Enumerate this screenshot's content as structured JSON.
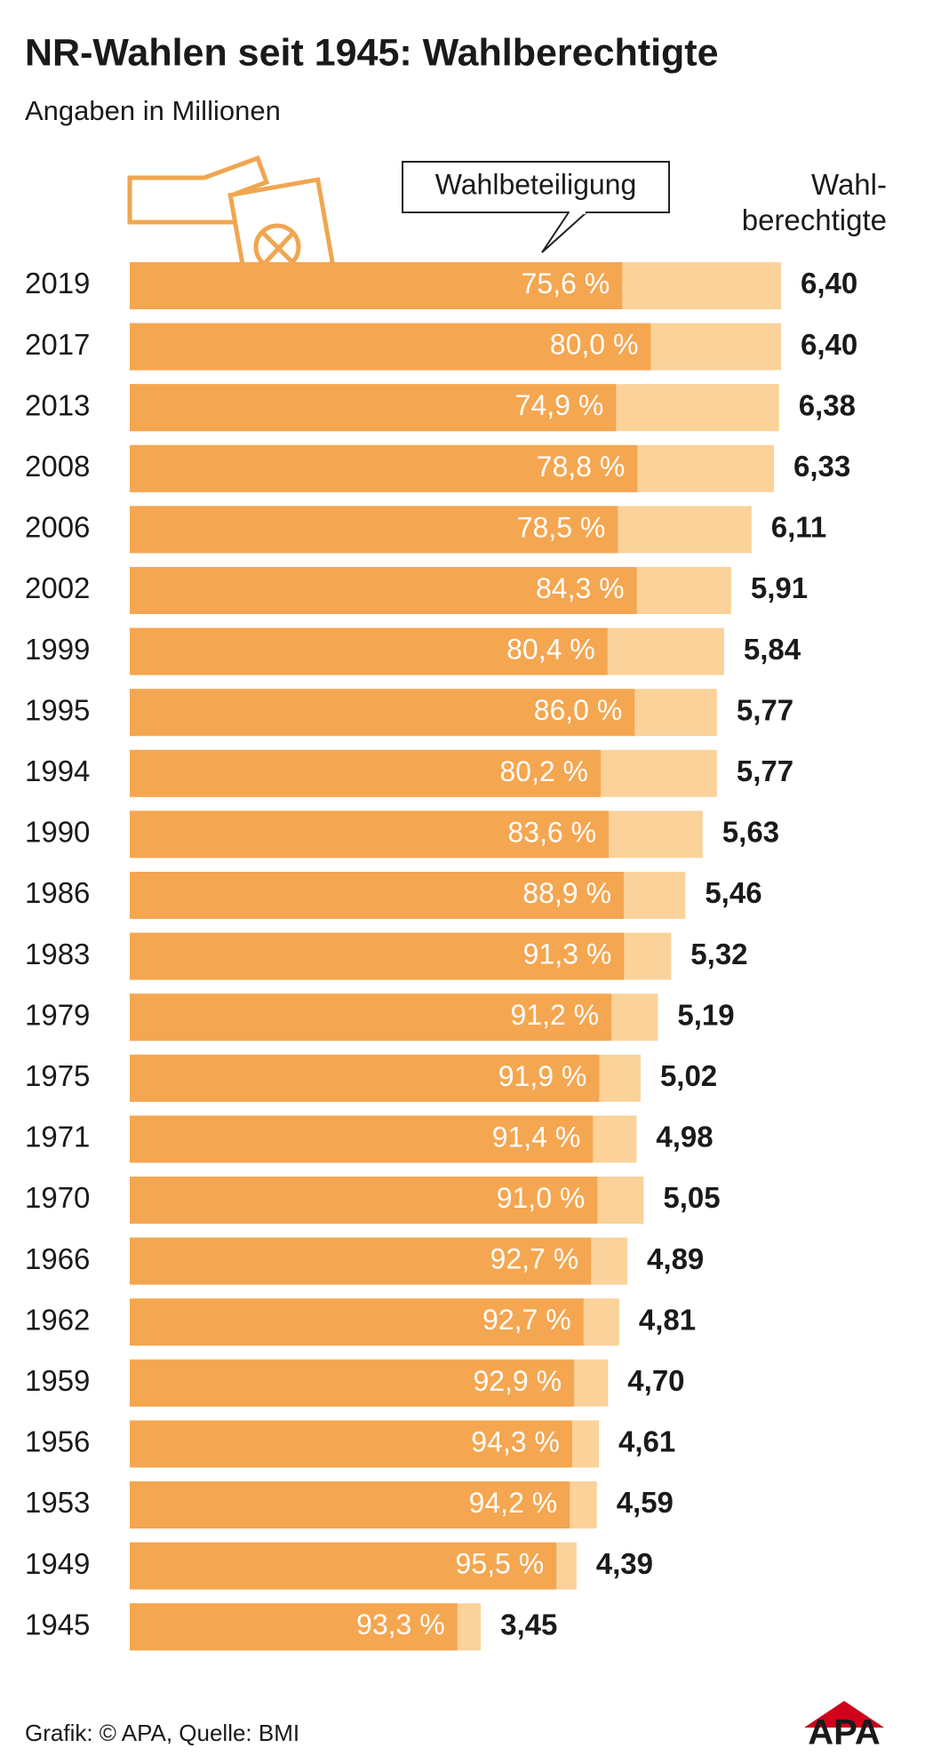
{
  "chart_data": {
    "type": "bar",
    "title": "NR-Wahlen seit 1945: Wahlberechtigte",
    "subtitle": "Angaben in Millionen",
    "categories": [
      "2019",
      "2017",
      "2013",
      "2008",
      "2006",
      "2002",
      "1999",
      "1995",
      "1994",
      "1990",
      "1986",
      "1983",
      "1979",
      "1975",
      "1971",
      "1970",
      "1966",
      "1962",
      "1959",
      "1956",
      "1953",
      "1949",
      "1945"
    ],
    "series": [
      {
        "name": "Wahl­berechtigte",
        "color": "#fad29a",
        "values": [
          6.4,
          6.4,
          6.38,
          6.33,
          6.11,
          5.91,
          5.84,
          5.77,
          5.77,
          5.63,
          5.46,
          5.32,
          5.19,
          5.02,
          4.98,
          5.05,
          4.89,
          4.81,
          4.7,
          4.61,
          4.59,
          4.39,
          3.45
        ],
        "value_labels": [
          "6,40",
          "6,40",
          "6,38",
          "6,33",
          "6,11",
          "5,91",
          "5,84",
          "5,77",
          "5,77",
          "5,63",
          "5,46",
          "5,32",
          "5,19",
          "5,02",
          "4,98",
          "5,05",
          "4,89",
          "4,81",
          "4,70",
          "4,61",
          "4,59",
          "4,39",
          "3,45"
        ]
      },
      {
        "name": "Wahlbeteiligung",
        "color": "#f5a650",
        "values": [
          75.6,
          80.0,
          74.9,
          78.8,
          78.5,
          84.3,
          80.4,
          86.0,
          80.2,
          83.6,
          88.9,
          91.3,
          91.2,
          91.9,
          91.4,
          91.0,
          92.7,
          92.7,
          92.9,
          94.3,
          94.2,
          95.5,
          93.3
        ],
        "value_labels": [
          "75,6 %",
          "80,0 %",
          "74,9 %",
          "78,8 %",
          "78,5 %",
          "84,3 %",
          "80,4 %",
          "86,0 %",
          "80,2 %",
          "83,6 %",
          "88,9 %",
          "91,3 %",
          "91,2 %",
          "91,9 %",
          "91,4 %",
          "91,0 %",
          "92,7 %",
          "92,7 %",
          "92,9 %",
          "94,3 %",
          "94,2 %",
          "95,5 %",
          "93,3 %"
        ]
      }
    ],
    "source": "Grafik: © APA, Quelle: BMI",
    "logo": "APA"
  }
}
